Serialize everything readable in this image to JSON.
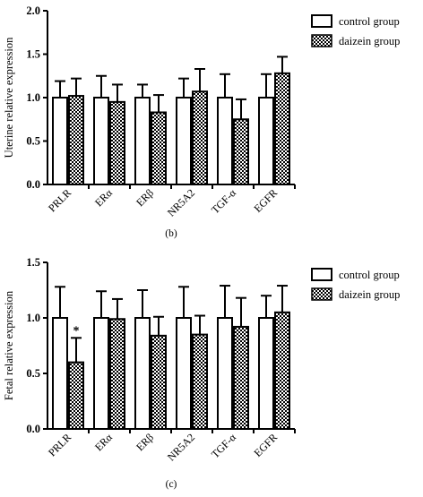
{
  "legend": {
    "control_label": "control group",
    "daizein_label": "daizein group"
  },
  "chart_data": [
    {
      "type": "bar",
      "panel_label": "(b)",
      "ylabel": "Uterine relative expression",
      "categories": [
        "PRLR",
        "ERα",
        "ERβ",
        "NR5A2",
        "TGF-α",
        "EGFR"
      ],
      "ylim": [
        0,
        2.0
      ],
      "yticks": [
        "0.0",
        "0.5",
        "1.0",
        "1.5",
        "2.0"
      ],
      "series": [
        {
          "name": "control group",
          "values": [
            1.0,
            1.0,
            1.0,
            1.0,
            1.0,
            1.0
          ],
          "errors": [
            0.19,
            0.25,
            0.15,
            0.22,
            0.27,
            0.27
          ]
        },
        {
          "name": "daizein group",
          "values": [
            1.02,
            0.95,
            0.83,
            1.07,
            0.75,
            1.28
          ],
          "errors": [
            0.2,
            0.2,
            0.2,
            0.26,
            0.23,
            0.19
          ]
        }
      ],
      "annotations": []
    },
    {
      "type": "bar",
      "panel_label": "(c)",
      "ylabel": "Fetal relative expression",
      "categories": [
        "PRLR",
        "ERα",
        "ERβ",
        "NR5A2",
        "TGF-α",
        "EGFR"
      ],
      "ylim": [
        0,
        1.5
      ],
      "yticks": [
        "0.0",
        "0.5",
        "1.0",
        "1.5"
      ],
      "series": [
        {
          "name": "control group",
          "values": [
            1.0,
            1.0,
            1.0,
            1.0,
            1.0,
            1.0
          ],
          "errors": [
            0.28,
            0.24,
            0.25,
            0.28,
            0.29,
            0.2
          ]
        },
        {
          "name": "daizein group",
          "values": [
            0.6,
            0.99,
            0.84,
            0.85,
            0.92,
            1.05
          ],
          "errors": [
            0.22,
            0.18,
            0.17,
            0.17,
            0.26,
            0.24
          ]
        }
      ],
      "annotations": [
        {
          "category": "PRLR",
          "series": "daizein group",
          "text": "*"
        }
      ]
    }
  ]
}
